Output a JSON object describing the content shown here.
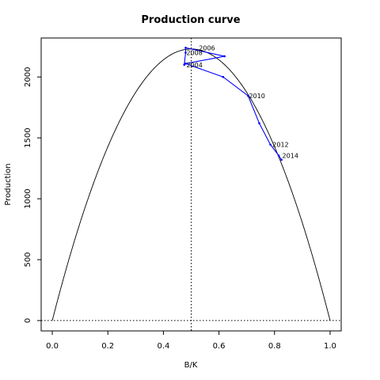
{
  "chart_data": {
    "type": "line",
    "title": "Production curve",
    "xlabel": "B/K",
    "ylabel": "Production",
    "xlim": [
      -0.04,
      1.04
    ],
    "ylim": [
      -85,
      2320
    ],
    "xticks": [
      0,
      0.2,
      0.4,
      0.6,
      0.8,
      1
    ],
    "xtick_labels": [
      "0.0",
      "0.2",
      "0.4",
      "0.6",
      "0.8",
      "1.0"
    ],
    "yticks": [
      0,
      500,
      1000,
      1500,
      2000
    ],
    "ytick_labels": [
      "0",
      "500",
      "1000",
      "1500",
      "2000"
    ],
    "grid": false,
    "reference_lines": {
      "vertical_x": 0.5,
      "horizontal_y": 0
    },
    "curve": {
      "type": "parabola",
      "peak_x": 0.5,
      "peak_y": 2230,
      "roots": [
        0,
        1
      ],
      "color": "#000000"
    },
    "series": [
      {
        "color": "#0000ff",
        "x": [
          0.475,
          0.48,
          0.48,
          0.62,
          0.48,
          0.615,
          0.705,
          0.745,
          0.785,
          0.815,
          0.825
        ],
        "y": [
          2100,
          2200,
          2240,
          2170,
          2110,
          2000,
          1845,
          1620,
          1445,
          1355,
          1320
        ]
      }
    ],
    "annotations": [
      {
        "label": "2004",
        "x": 0.48,
        "y": 2100
      },
      {
        "label": "2006",
        "x": 0.525,
        "y": 2240
      },
      {
        "label": "2008",
        "x": 0.48,
        "y": 2200
      },
      {
        "label": "2010",
        "x": 0.705,
        "y": 1845
      },
      {
        "label": "2012",
        "x": 0.79,
        "y": 1445
      },
      {
        "label": "2014",
        "x": 0.825,
        "y": 1355
      }
    ]
  }
}
